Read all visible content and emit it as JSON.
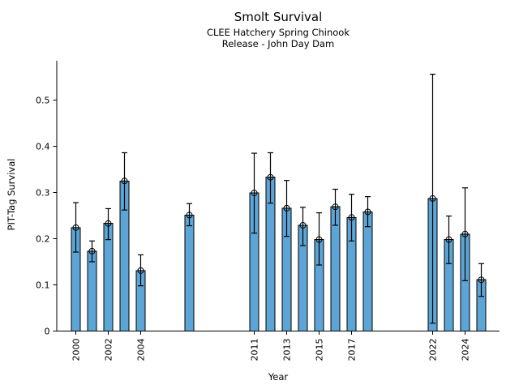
{
  "chart_data": {
    "type": "bar",
    "title": "Smolt Survival",
    "subtitle_line1": "CLEE Hatchery Spring Chinook",
    "subtitle_line2": "Release - John Day Dam",
    "xlabel": "Year",
    "ylabel": "PIT-Tag Survival",
    "x": [
      2000,
      2001,
      2002,
      2003,
      2004,
      2007,
      2011,
      2012,
      2013,
      2014,
      2015,
      2016,
      2017,
      2018,
      2022,
      2023,
      2024,
      2025
    ],
    "values": [
      0.224,
      0.173,
      0.233,
      0.325,
      0.131,
      0.251,
      0.299,
      0.333,
      0.266,
      0.229,
      0.198,
      0.269,
      0.246,
      0.258,
      0.287,
      0.198,
      0.21,
      0.111
    ],
    "error_low": [
      0.171,
      0.15,
      0.198,
      0.262,
      0.098,
      0.228,
      0.212,
      0.277,
      0.205,
      0.185,
      0.143,
      0.229,
      0.195,
      0.226,
      0.017,
      0.146,
      0.109,
      0.075
    ],
    "error_high": [
      0.278,
      0.195,
      0.265,
      0.386,
      0.165,
      0.276,
      0.385,
      0.386,
      0.326,
      0.268,
      0.256,
      0.307,
      0.296,
      0.291,
      0.556,
      0.249,
      0.31,
      0.146
    ],
    "x_ticks": [
      2000,
      2002,
      2004,
      2011,
      2013,
      2015,
      2017,
      2022,
      2024
    ],
    "y_ticks": [
      0,
      0.1,
      0.2,
      0.3,
      0.4,
      0.5
    ],
    "y_tick_labels": [
      "0",
      "0.1",
      "0.2",
      "0.3",
      "0.4",
      "0.5"
    ],
    "xlim": [
      1998.8,
      2026.1
    ],
    "ylim": [
      0,
      0.585
    ],
    "grid": false,
    "legend": null,
    "bar_color": "#5CA5D6",
    "bar_edge_color": "#000000",
    "error_color": "#000000",
    "marker": "open-circle-plus"
  }
}
